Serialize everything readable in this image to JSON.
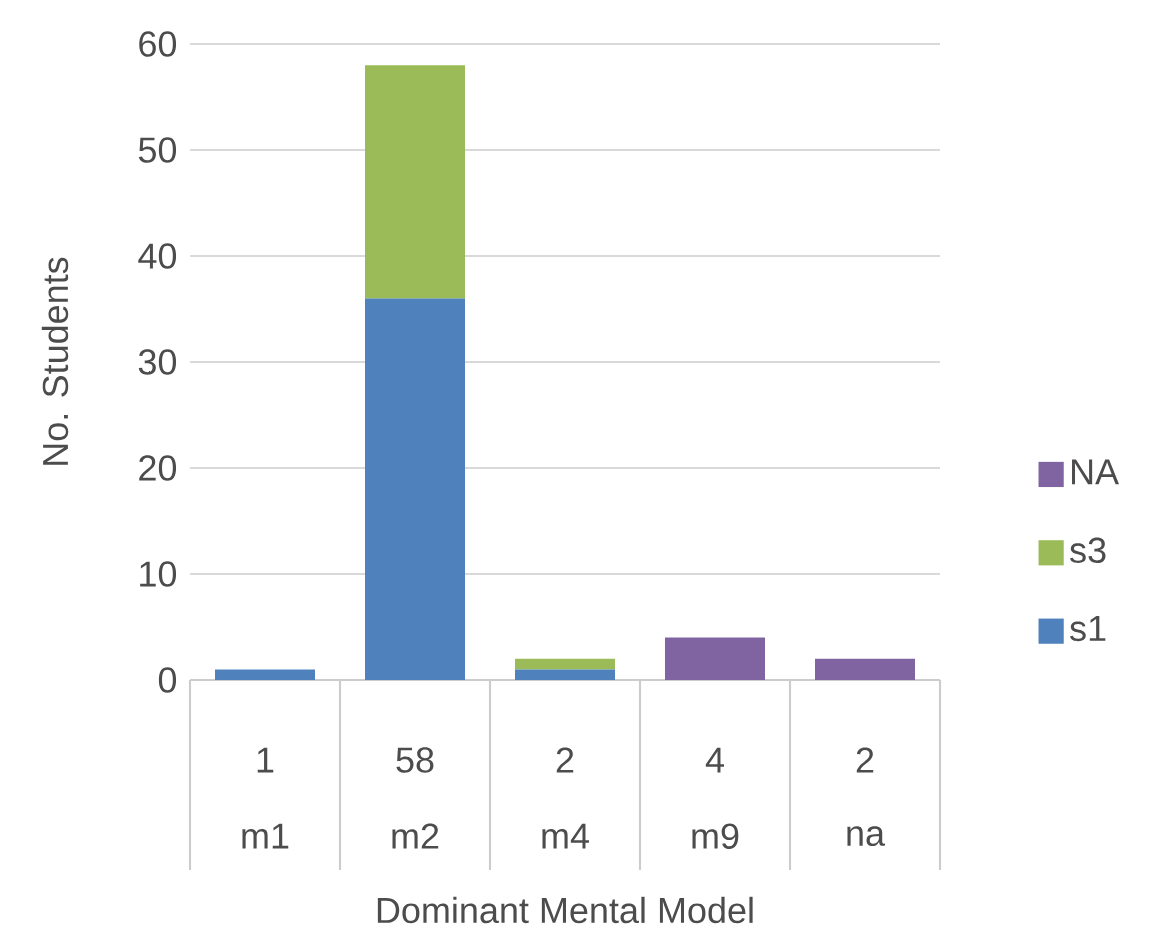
{
  "chart_data": {
    "type": "bar",
    "stacked": true,
    "xlabel": "Dominant Mental Model",
    "ylabel": "No. Students",
    "categories": [
      "m1",
      "m2",
      "m4",
      "m9",
      "na"
    ],
    "series": [
      {
        "name": "s1",
        "color": "#4f81bd",
        "values": [
          1,
          36,
          1,
          0,
          0
        ]
      },
      {
        "name": "s3",
        "color": "#9bbb59",
        "values": [
          0,
          22,
          1,
          0,
          0
        ]
      },
      {
        "name": "NA",
        "color": "#8064a2",
        "values": [
          0,
          0,
          0,
          4,
          2
        ]
      }
    ],
    "totals": [
      "1",
      "58",
      "2",
      "4",
      "2"
    ],
    "ylim": [
      0,
      60
    ],
    "yticks": [
      0,
      10,
      20,
      30,
      40,
      50,
      60
    ],
    "grid": "y",
    "legend": "right"
  }
}
